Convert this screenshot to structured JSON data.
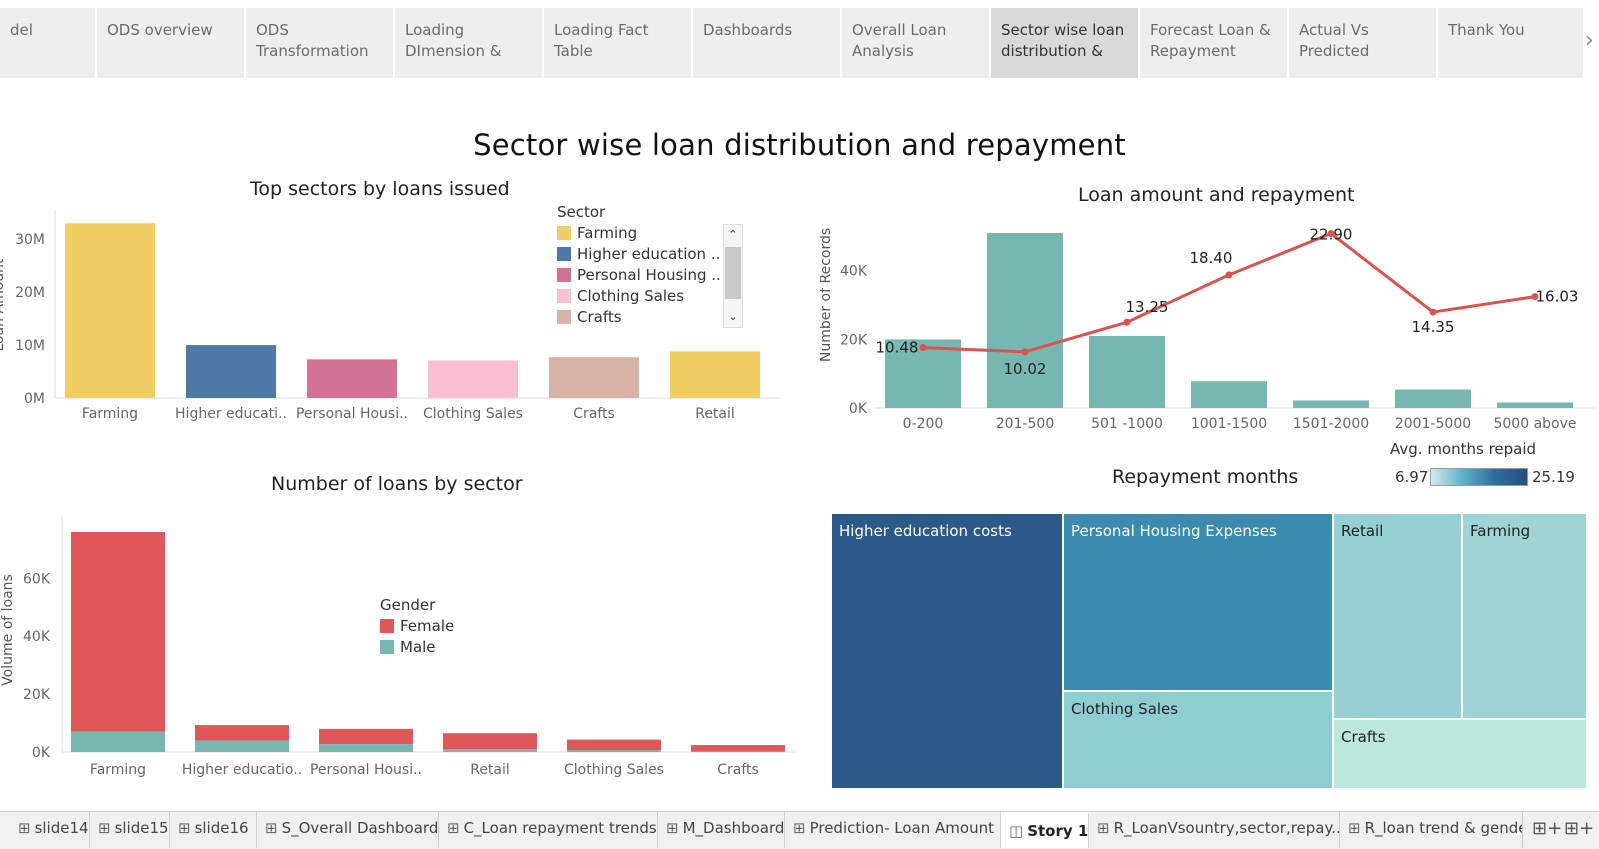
{
  "story": {
    "points": [
      "del",
      "ODS overview",
      "ODS Transformation",
      "Loading DImension &",
      "Loading Fact Table",
      "Dashboards",
      "Overall Loan Analysis",
      "Sector wise loan distribution &",
      "Forecast Loan & Repayment",
      "Actual Vs Predicted",
      "Thank You"
    ],
    "active_index": 7,
    "next_icon": "chevron-right-icon"
  },
  "page_title": "Sector wise loan distribution and repayment",
  "legends": {
    "sector": {
      "title": "Sector",
      "items": [
        "Farming",
        "Higher education ..",
        "Personal Housing ..",
        "Clothing Sales",
        "Crafts"
      ],
      "scroll_up": "⌃",
      "scroll_down": "⌄"
    },
    "gender": {
      "title": "Gender",
      "items": [
        "Female",
        "Male"
      ]
    },
    "repayment_color": {
      "title": "Avg. months repaid",
      "min_label": "6.97",
      "max_label": "25.19"
    }
  },
  "colors": {
    "farming": "#f0ce63",
    "higher_education": "#4e79a7",
    "personal_housing": "#d37295",
    "clothing_sales": "#f9c0d3",
    "crafts": "#d6b3a6",
    "retail": "#f0ce63",
    "female": "#e05759",
    "male": "#76b7b2",
    "bar_teal": "#76b7b2",
    "line_red": "#d9534f"
  },
  "chart_data": [
    {
      "type": "bar",
      "title": "Top sectors by loans issued",
      "ylabel": "Loan Amount",
      "categories": [
        "Farming",
        "Higher educati..",
        "Personal Housi..",
        "Clothing Sales",
        "Crafts",
        "Retail"
      ],
      "values": [
        33000000,
        10000000,
        7300000,
        7100000,
        7700000,
        8800000
      ],
      "yticks": [
        "0M",
        "10M",
        "20M",
        "30M"
      ],
      "ylim": [
        0,
        34000000
      ]
    },
    {
      "type": "bar",
      "title": "Loan amount and repayment",
      "ylabel": "Number of Records",
      "categories": [
        "0-200",
        "201-500",
        "501 -1000",
        "1001-1500",
        "1501-2000",
        "2001-5000",
        "5000 above"
      ],
      "values": [
        20000,
        51000,
        21000,
        7800,
        2200,
        5400,
        1600
      ],
      "line_values": [
        10.48,
        10.02,
        13.25,
        18.4,
        22.9,
        14.35,
        16.03
      ],
      "line_labels": [
        "10.48",
        "10.02",
        "13.25",
        "18.40",
        "22.90",
        "14.35",
        "16.03"
      ],
      "yticks": [
        "0K",
        "20K",
        "40K"
      ],
      "ylim": [
        0,
        51000
      ]
    },
    {
      "type": "bar",
      "title": "Number of loans by sector",
      "ylabel": "Volume of loans",
      "categories": [
        "Farming",
        "Higher educatio..",
        "Personal Housi..",
        "Retail",
        "Clothing Sales",
        "Crafts"
      ],
      "series": [
        {
          "name": "Male",
          "values": [
            7000,
            4000,
            2700,
            1000,
            700,
            200
          ]
        },
        {
          "name": "Female",
          "values": [
            69000,
            5300,
            5300,
            5500,
            3600,
            2200
          ]
        }
      ],
      "yticks": [
        "0K",
        "20K",
        "40K",
        "60K"
      ],
      "ylim": [
        0,
        76000
      ]
    },
    {
      "type": "heatmap",
      "title": "Repayment months",
      "cells": [
        {
          "label": "Higher education costs",
          "months": 25.19
        },
        {
          "label": "Personal Housing Expenses",
          "months": 21.0
        },
        {
          "label": "Clothing Sales",
          "months": 10.0
        },
        {
          "label": "Retail",
          "months": 9.5
        },
        {
          "label": "Farming",
          "months": 9.5
        },
        {
          "label": "Crafts",
          "months": 6.97
        }
      ]
    }
  ],
  "sheets": {
    "tabs": [
      "slide14",
      "slide15",
      "slide16",
      "S_Overall Dashboard",
      "C_Loan repayment trends",
      "M_Dashboard",
      "Prediction- Loan Amount",
      "Story 1",
      "R_LoanVsountry,sector,repay...",
      "R_loan trend & gender"
    ],
    "active_index": 7,
    "icons": [
      "grid-icon",
      "grid-icon",
      "grid-icon",
      "grid-icon",
      "grid-icon",
      "grid-icon",
      "grid-icon",
      "book-icon",
      "grid-icon",
      "grid-icon"
    ],
    "icon_glyphs": [
      "⊞",
      "⊞",
      "⊞",
      "⊞",
      "⊞",
      "⊞",
      "⊞",
      "◫",
      "⊞",
      "⊞"
    ],
    "new_dashboard_glyph": "⊞+",
    "new_story_glyph": "⊞+"
  }
}
